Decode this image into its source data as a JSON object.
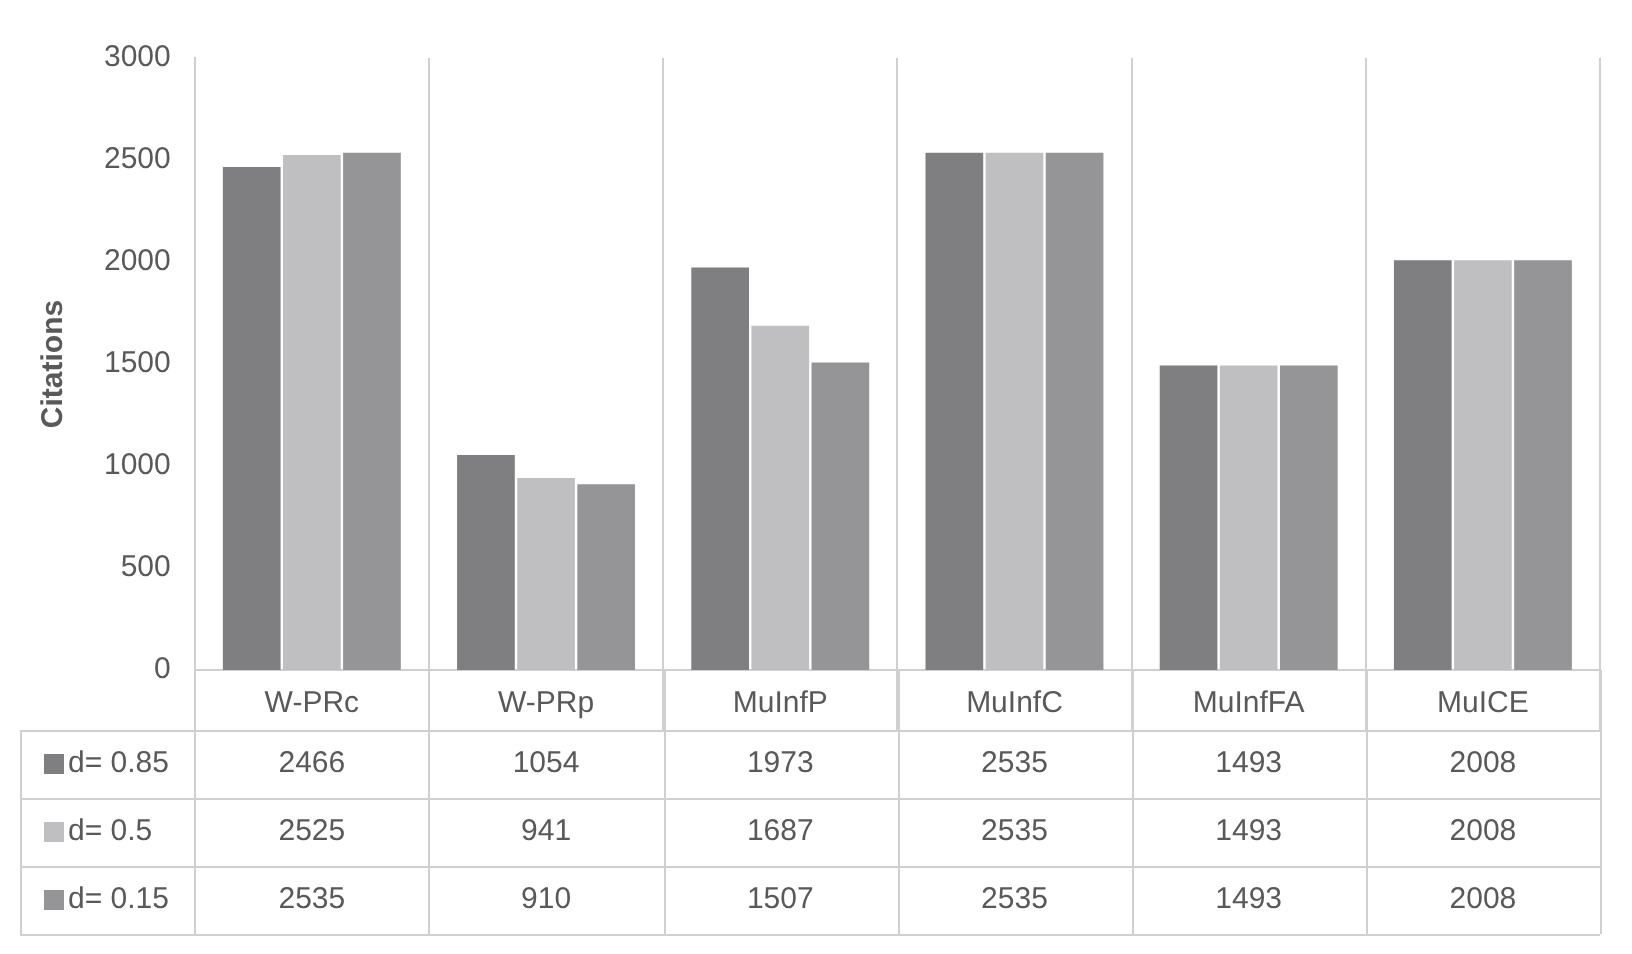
{
  "chart_data": {
    "type": "bar",
    "ylabel": "Citations",
    "categories": [
      "W-PRc",
      "W-PRp",
      "MuInfP",
      "MuInfC",
      "MuInfFA",
      "MuICE"
    ],
    "series": [
      {
        "name": "d= 0.85",
        "color": "#7f7f81",
        "values": [
          2466,
          1054,
          1973,
          2535,
          1493,
          2008
        ]
      },
      {
        "name": "d= 0.5",
        "color": "#bfbfc1",
        "values": [
          2525,
          941,
          1687,
          2535,
          1493,
          2008
        ]
      },
      {
        "name": "d= 0.15",
        "color": "#959597",
        "values": [
          2535,
          910,
          1507,
          2535,
          1493,
          2008
        ]
      }
    ],
    "ylim": [
      0,
      3000
    ],
    "yticks": [
      0,
      500,
      1000,
      1500,
      2000,
      2500,
      3000
    ],
    "grid": "x",
    "legend": "bottom",
    "data_labels": true
  }
}
